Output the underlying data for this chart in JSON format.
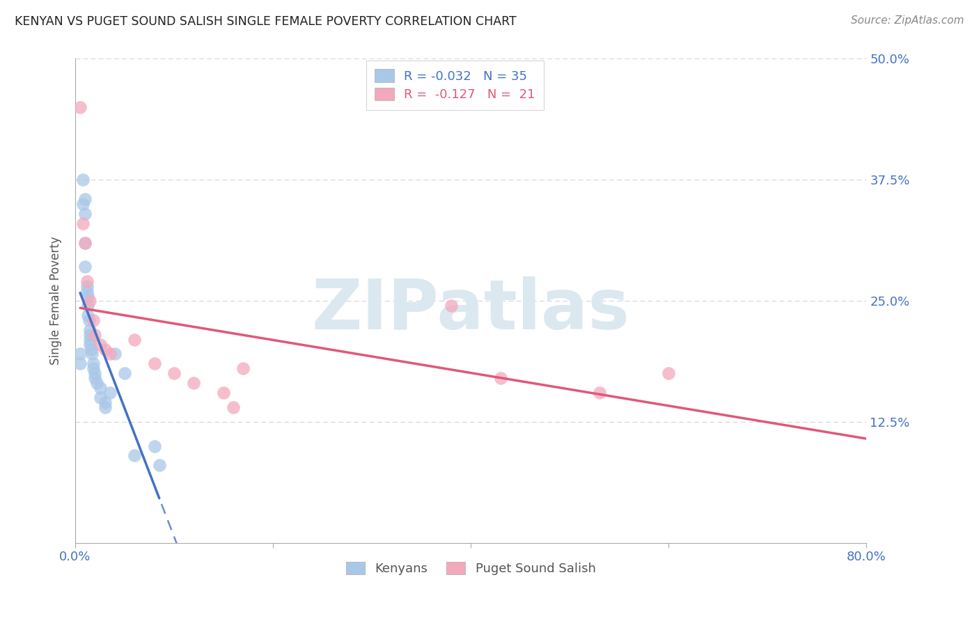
{
  "title": "KENYAN VS PUGET SOUND SALISH SINGLE FEMALE POVERTY CORRELATION CHART",
  "source": "Source: ZipAtlas.com",
  "ylabel": "Single Female Poverty",
  "xlim": [
    0.0,
    0.8
  ],
  "ylim": [
    0.0,
    0.5
  ],
  "yticks": [
    0.0,
    0.125,
    0.25,
    0.375,
    0.5
  ],
  "ytick_labels": [
    "",
    "12.5%",
    "25.0%",
    "37.5%",
    "50.0%"
  ],
  "xticks": [
    0.0,
    0.2,
    0.4,
    0.6,
    0.8
  ],
  "xtick_labels": [
    "0.0%",
    "",
    "",
    "",
    "80.0%"
  ],
  "blue_R": -0.032,
  "blue_N": 35,
  "pink_R": -0.127,
  "pink_N": 21,
  "blue_color": "#a8c8e8",
  "pink_color": "#f4a8bc",
  "blue_line_color": "#4472c4",
  "pink_line_color": "#e05878",
  "watermark_text": "ZIPatlas",
  "watermark_color": "#dce8f0",
  "background_color": "#ffffff",
  "grid_color": "#cccccc",
  "title_color": "#222222",
  "axis_label_color": "#555555",
  "tick_label_color": "#4472c4",
  "blue_scatter_x": [
    0.005,
    0.005,
    0.008,
    0.008,
    0.01,
    0.01,
    0.01,
    0.01,
    0.012,
    0.012,
    0.013,
    0.013,
    0.013,
    0.014,
    0.015,
    0.015,
    0.015,
    0.015,
    0.016,
    0.017,
    0.018,
    0.018,
    0.02,
    0.02,
    0.022,
    0.025,
    0.025,
    0.03,
    0.03,
    0.035,
    0.04,
    0.05,
    0.06,
    0.08,
    0.085
  ],
  "blue_scatter_y": [
    0.195,
    0.185,
    0.375,
    0.35,
    0.355,
    0.34,
    0.31,
    0.285,
    0.265,
    0.26,
    0.255,
    0.245,
    0.235,
    0.23,
    0.22,
    0.215,
    0.21,
    0.205,
    0.2,
    0.195,
    0.185,
    0.18,
    0.175,
    0.17,
    0.165,
    0.16,
    0.15,
    0.145,
    0.14,
    0.155,
    0.195,
    0.175,
    0.09,
    0.1,
    0.08
  ],
  "pink_scatter_x": [
    0.005,
    0.008,
    0.01,
    0.012,
    0.015,
    0.018,
    0.02,
    0.025,
    0.03,
    0.035,
    0.06,
    0.08,
    0.1,
    0.12,
    0.15,
    0.16,
    0.17,
    0.38,
    0.43,
    0.53,
    0.6
  ],
  "pink_scatter_y": [
    0.45,
    0.33,
    0.31,
    0.27,
    0.25,
    0.23,
    0.215,
    0.205,
    0.2,
    0.195,
    0.21,
    0.185,
    0.175,
    0.165,
    0.155,
    0.14,
    0.18,
    0.245,
    0.17,
    0.155,
    0.175
  ]
}
